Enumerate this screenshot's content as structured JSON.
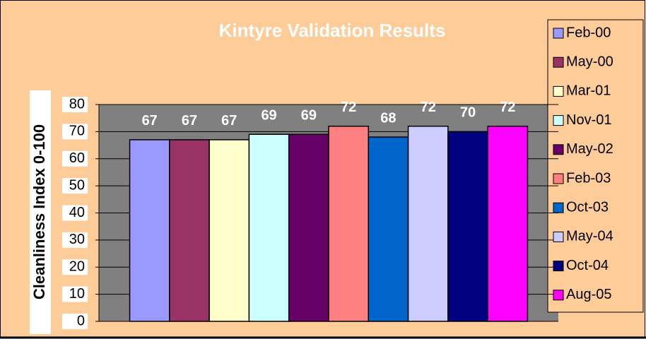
{
  "chart_data": {
    "type": "bar",
    "title": "Kintyre Validation Results",
    "y_label": "Cleanliness Index 0-100",
    "ylim": [
      0,
      80
    ],
    "yticks": [
      0,
      10,
      20,
      30,
      40,
      50,
      60,
      70,
      80
    ],
    "grid": true,
    "legend": "right",
    "series": [
      {
        "name": "Feb-00",
        "color": "#9999FF",
        "values": [
          67
        ]
      },
      {
        "name": "May-00",
        "color": "#993366",
        "values": [
          67
        ]
      },
      {
        "name": "Mar-01",
        "color": "#FFFFCC",
        "values": [
          67
        ]
      },
      {
        "name": "Nov-01",
        "color": "#CCFFFF",
        "values": [
          69
        ]
      },
      {
        "name": "May-02",
        "color": "#660066",
        "values": [
          69
        ]
      },
      {
        "name": "Feb-03",
        "color": "#FF8080",
        "values": [
          72
        ]
      },
      {
        "name": "Oct-03",
        "color": "#0066CC",
        "values": [
          68
        ]
      },
      {
        "name": "May-04",
        "color": "#CCCCFF",
        "values": [
          72
        ]
      },
      {
        "name": "Oct-04",
        "color": "#000080",
        "values": [
          70
        ]
      },
      {
        "name": "Aug-05",
        "color": "#FF00FF",
        "values": [
          72
        ]
      }
    ]
  }
}
